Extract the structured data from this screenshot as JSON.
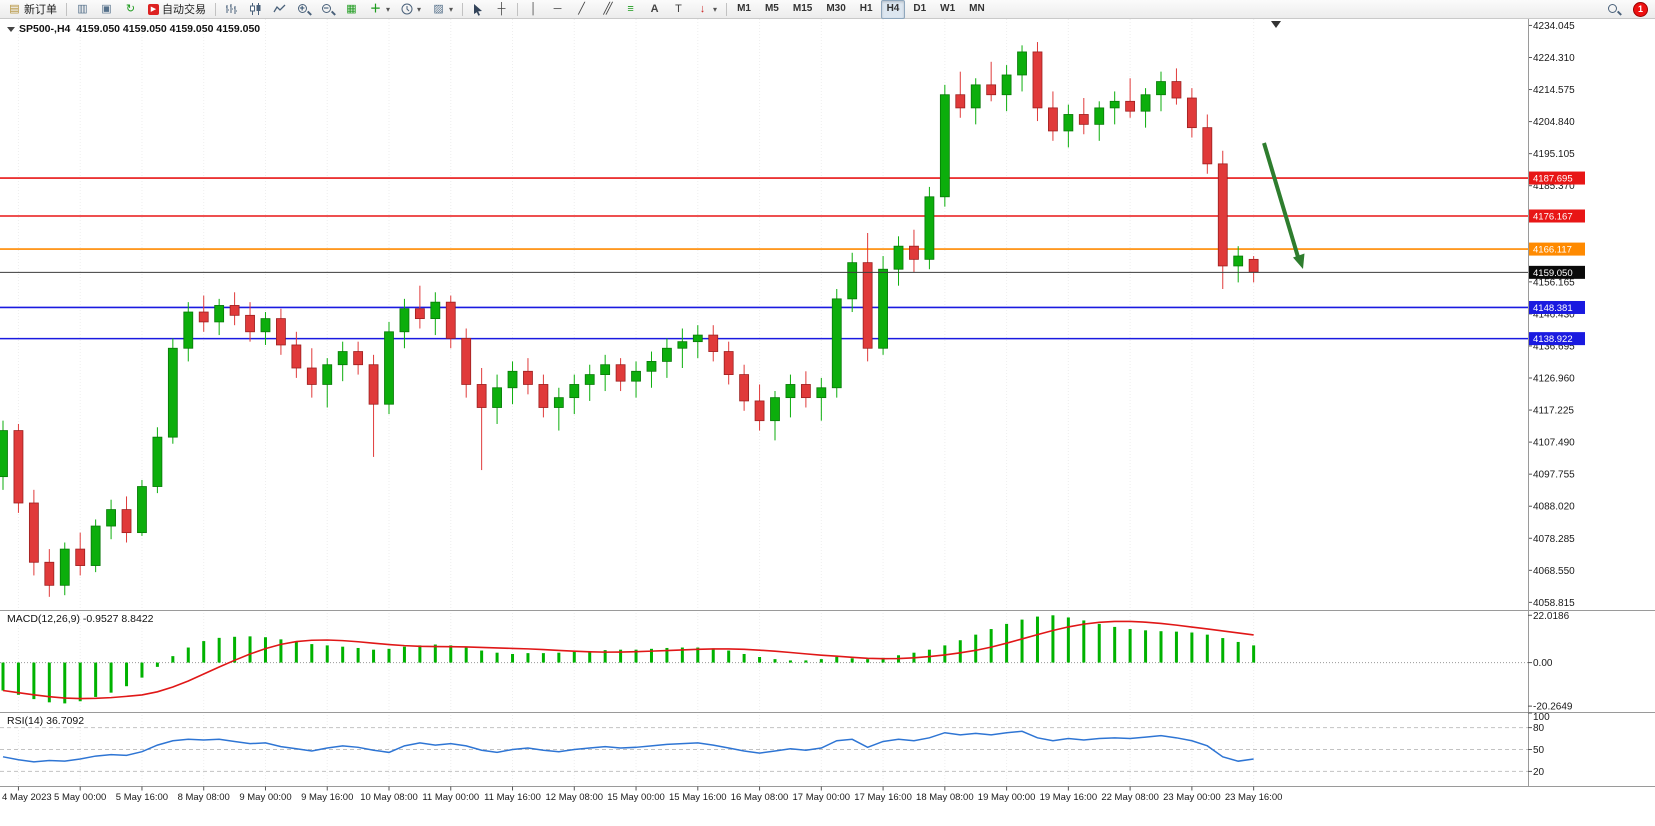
{
  "toolbar": {
    "new_order": "新订单",
    "auto_trading": "自动交易",
    "timeframes": [
      "M1",
      "M5",
      "M15",
      "M30",
      "H1",
      "H4",
      "D1",
      "W1",
      "MN"
    ],
    "active_timeframe": "H4",
    "notification_count": "1"
  },
  "window": {
    "symbol_title": "SP500-,H4",
    "ohlc": "4159.050 4159.050 4159.050 4159.050"
  },
  "price_axis": {
    "labels": [
      "4234.045",
      "4224.310",
      "4214.575",
      "4204.840",
      "4195.105",
      "4185.370",
      "4175.635",
      "4165.900",
      "4156.165",
      "4146.430",
      "4136.695",
      "4126.960",
      "4117.225",
      "4107.490",
      "4097.755",
      "4088.020",
      "4078.285",
      "4068.550",
      "4058.815"
    ]
  },
  "time_axis": {
    "labels": [
      "4 May 2023",
      "5 May 00:00",
      "5 May 16:00",
      "8 May 08:00",
      "9 May 00:00",
      "9 May 16:00",
      "10 May 08:00",
      "11 May 00:00",
      "11 May 16:00",
      "12 May 08:00",
      "15 May 00:00",
      "15 May 16:00",
      "16 May 08:00",
      "17 May 00:00",
      "17 May 16:00",
      "18 May 08:00",
      "19 May 00:00",
      "19 May 16:00",
      "22 May 08:00",
      "23 May 00:00",
      "23 May 16:00"
    ]
  },
  "indicators": {
    "macd": {
      "label": "MACD(12,26,9)",
      "values": "-0.9527 8.8422",
      "axis_labels": [
        "22.0186",
        "0.00",
        "-20.2649"
      ]
    },
    "rsi": {
      "label": "RSI(14)",
      "value": "36.7092",
      "axis_labels": [
        "100",
        "80",
        "50",
        "20"
      ],
      "levels": [
        80,
        50,
        20
      ]
    }
  },
  "chart_data": {
    "type": "candlestick",
    "symbol": "SP500-",
    "timeframe": "H4",
    "price_range": [
      4056.5,
      4236.0
    ],
    "current_price": {
      "value": 4159.05,
      "label": "4159.050"
    },
    "hlines": [
      {
        "price": 4187.695,
        "label": "4187.695",
        "color": "#e81616"
      },
      {
        "price": 4176.167,
        "label": "4176.167",
        "color": "#e81616"
      },
      {
        "price": 4166.117,
        "label": "4166.117",
        "color": "#ff8a00"
      },
      {
        "price": 4148.381,
        "label": "4148.381",
        "color": "#1a1ae0"
      },
      {
        "price": 4138.922,
        "label": "4138.922",
        "color": "#1a1ae0"
      }
    ],
    "candles": [
      [
        4097,
        4114,
        4093,
        4111
      ],
      [
        4111,
        4113,
        4086,
        4089
      ],
      [
        4089,
        4093,
        4067,
        4071
      ],
      [
        4071,
        4075,
        4060.5,
        4064
      ],
      [
        4064,
        4077,
        4061,
        4075
      ],
      [
        4075,
        4080,
        4067,
        4070
      ],
      [
        4070,
        4084,
        4068,
        4082
      ],
      [
        4082,
        4090,
        4078,
        4087
      ],
      [
        4087,
        4091,
        4077,
        4080
      ],
      [
        4080,
        4096,
        4079,
        4094
      ],
      [
        4094,
        4112,
        4092,
        4109
      ],
      [
        4109,
        4139,
        4107,
        4136
      ],
      [
        4136,
        4150,
        4132,
        4147
      ],
      [
        4147,
        4152,
        4141,
        4144
      ],
      [
        4144,
        4151,
        4140,
        4149
      ],
      [
        4149,
        4153,
        4143,
        4146
      ],
      [
        4146,
        4150,
        4138,
        4141
      ],
      [
        4141,
        4147,
        4137,
        4145
      ],
      [
        4145,
        4148,
        4134,
        4137
      ],
      [
        4137,
        4141,
        4127,
        4130
      ],
      [
        4130,
        4136,
        4121,
        4125
      ],
      [
        4125,
        4133,
        4118,
        4131
      ],
      [
        4131,
        4138,
        4126,
        4135
      ],
      [
        4135,
        4138,
        4128,
        4131
      ],
      [
        4131,
        4134,
        4103,
        4119
      ],
      [
        4119,
        4144,
        4116,
        4141
      ],
      [
        4141,
        4151,
        4136,
        4148
      ],
      [
        4148,
        4155,
        4142,
        4145
      ],
      [
        4145,
        4153,
        4140,
        4150
      ],
      [
        4150,
        4152,
        4136,
        4139
      ],
      [
        4139,
        4142,
        4121,
        4125
      ],
      [
        4125,
        4130,
        4099,
        4118
      ],
      [
        4118,
        4128,
        4113,
        4124
      ],
      [
        4124,
        4132,
        4119,
        4129
      ],
      [
        4129,
        4133,
        4122,
        4125
      ],
      [
        4125,
        4128,
        4115,
        4118
      ],
      [
        4118,
        4124,
        4111,
        4121
      ],
      [
        4121,
        4128,
        4116,
        4125
      ],
      [
        4125,
        4131,
        4120,
        4128
      ],
      [
        4128,
        4134,
        4123,
        4131
      ],
      [
        4131,
        4133,
        4123,
        4126
      ],
      [
        4126,
        4132,
        4121,
        4129
      ],
      [
        4129,
        4135,
        4124,
        4132
      ],
      [
        4132,
        4139,
        4127,
        4136
      ],
      [
        4136,
        4142,
        4130,
        4138
      ],
      [
        4138,
        4143,
        4133,
        4140
      ],
      [
        4140,
        4143,
        4132,
        4135
      ],
      [
        4135,
        4138,
        4125,
        4128
      ],
      [
        4128,
        4131,
        4117,
        4120
      ],
      [
        4120,
        4125,
        4111,
        4114
      ],
      [
        4114,
        4123,
        4108,
        4121
      ],
      [
        4121,
        4128,
        4115,
        4125
      ],
      [
        4125,
        4129,
        4118,
        4121
      ],
      [
        4121,
        4127,
        4114,
        4124
      ],
      [
        4124,
        4154,
        4121,
        4151
      ],
      [
        4151,
        4165,
        4147,
        4162
      ],
      [
        4162,
        4171,
        4132,
        4136
      ],
      [
        4136,
        4164,
        4134,
        4160
      ],
      [
        4160,
        4170,
        4155,
        4167
      ],
      [
        4167,
        4172,
        4159,
        4163
      ],
      [
        4163,
        4185,
        4160,
        4182
      ],
      [
        4182,
        4216,
        4179,
        4213
      ],
      [
        4213,
        4220,
        4206,
        4209
      ],
      [
        4209,
        4218,
        4204,
        4216
      ],
      [
        4216,
        4223,
        4211,
        4213
      ],
      [
        4213,
        4222,
        4208,
        4219
      ],
      [
        4219,
        4228,
        4214,
        4226
      ],
      [
        4226,
        4229,
        4205,
        4209
      ],
      [
        4209,
        4214,
        4199,
        4202
      ],
      [
        4202,
        4210,
        4197,
        4207
      ],
      [
        4207,
        4212,
        4201,
        4204
      ],
      [
        4204,
        4211,
        4199,
        4209
      ],
      [
        4209,
        4214,
        4204,
        4211
      ],
      [
        4211,
        4218,
        4206,
        4208
      ],
      [
        4208,
        4215,
        4203,
        4213
      ],
      [
        4213,
        4220,
        4208,
        4217
      ],
      [
        4217,
        4221,
        4210,
        4212
      ],
      [
        4212,
        4215,
        4200,
        4203
      ],
      [
        4203,
        4207,
        4189,
        4192
      ],
      [
        4192,
        4196,
        4154,
        4161
      ],
      [
        4161,
        4167,
        4156,
        4164
      ],
      [
        4163,
        4164,
        4156,
        4159.1
      ]
    ],
    "macd_histogram": [
      -13,
      -15,
      -17,
      -18.5,
      -19,
      -18,
      -16,
      -14,
      -11,
      -7,
      -2,
      3,
      7,
      10,
      11.5,
      12,
      12.2,
      11.8,
      10.8,
      9.6,
      8.6,
      8,
      7.4,
      6.8,
      6,
      6.4,
      7.4,
      8,
      8.4,
      8,
      7,
      5.6,
      4.6,
      4,
      4.4,
      4.4,
      4.6,
      5,
      5.4,
      5.8,
      6,
      6,
      6.4,
      6.8,
      7,
      7,
      6.6,
      5.6,
      4,
      2.6,
      1.6,
      1,
      1,
      1.6,
      2.6,
      2,
      1.6,
      2.2,
      3.4,
      4.6,
      6,
      8,
      10.4,
      13,
      15.6,
      18,
      20,
      21.4,
      22,
      21,
      19.6,
      18,
      16.6,
      15.6,
      15,
      14.6,
      14.4,
      14,
      13,
      11.4,
      9.6,
      8
    ],
    "rsi_series": [
      40,
      36,
      33,
      35,
      34,
      37,
      41,
      43,
      42,
      47,
      56,
      62,
      64,
      63,
      64,
      61,
      58,
      59,
      54,
      51,
      48,
      52,
      55,
      53,
      49,
      46,
      55,
      59,
      56,
      58,
      55,
      49,
      46,
      50,
      52,
      49,
      47,
      50,
      52,
      54,
      52,
      53,
      55,
      57,
      58,
      59,
      56,
      52,
      48,
      45,
      48,
      51,
      49,
      52,
      62,
      64,
      53,
      61,
      64,
      62,
      66,
      73,
      70,
      72,
      70,
      73,
      75,
      66,
      62,
      65,
      63,
      65,
      66,
      65,
      67,
      69,
      66,
      62,
      55,
      40,
      34,
      37
    ],
    "colors": {
      "bull": "#0cae0c",
      "bear": "#e03a3a",
      "macd_hist": "#00b200",
      "macd_signal": "#e01717",
      "rsi_line": "#2e75d4"
    }
  },
  "annotations": {
    "down_arrow": {
      "color": "#2e7d2e"
    }
  }
}
